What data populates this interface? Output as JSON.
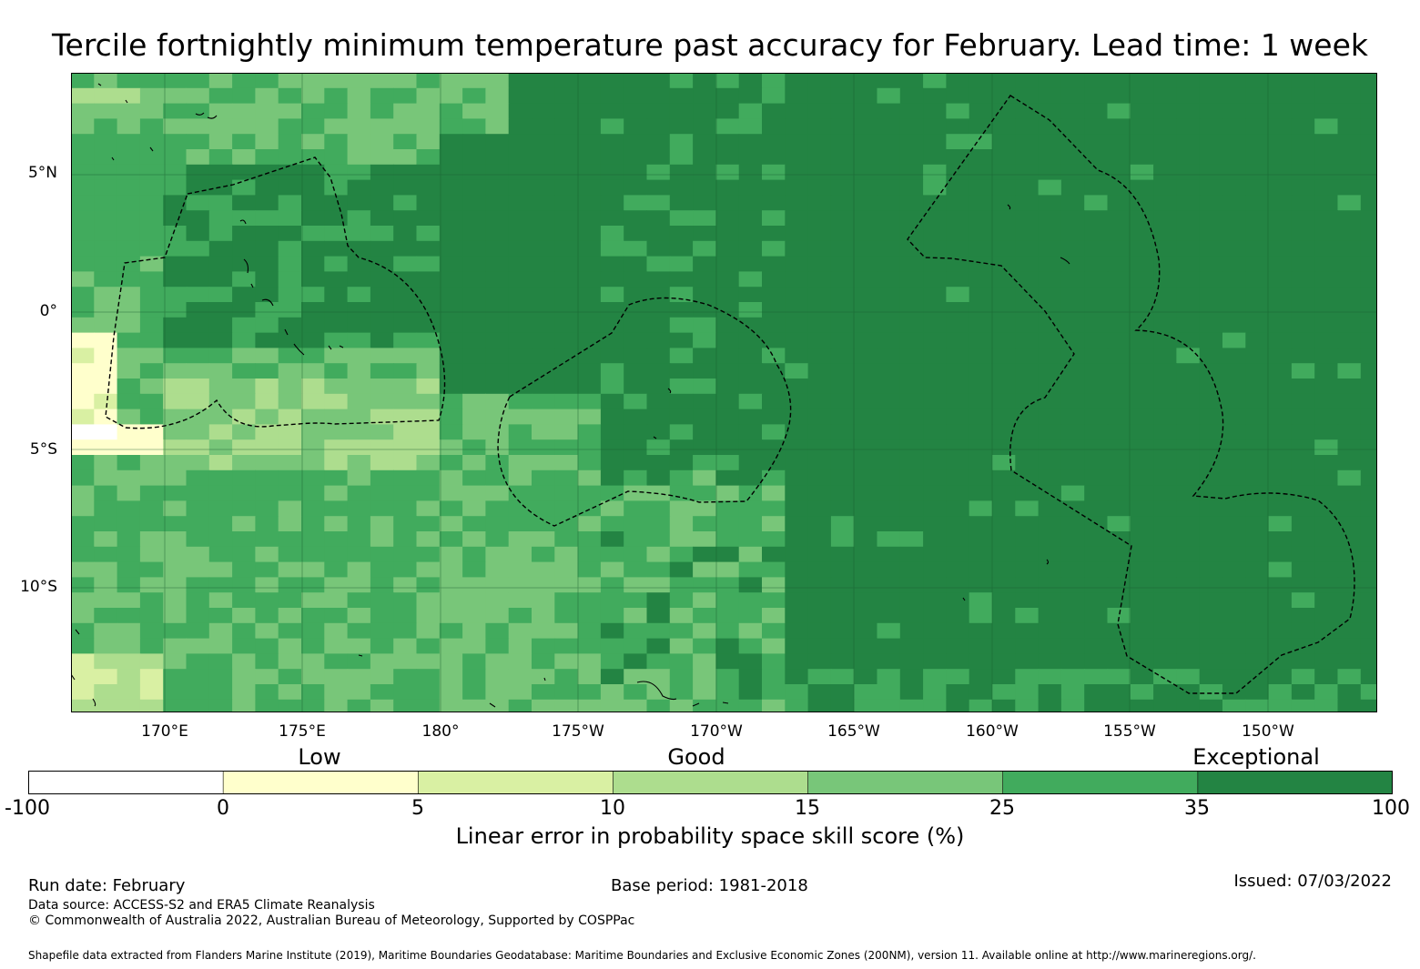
{
  "title": "Tercile fortnightly minimum temperature past accuracy for February. Lead time: 1 week",
  "map": {
    "lat_labels": [
      "5°N",
      "0°",
      "5°S",
      "10°S"
    ],
    "lon_labels": [
      "170°E",
      "175°E",
      "180°",
      "175°W",
      "170°W",
      "165°W",
      "160°W",
      "155°W",
      "150°W"
    ],
    "grid_columns": [
      "#7cc67a",
      "#7cc67a",
      "#7cc67a",
      "#7cc67a",
      "#7cc67a",
      "#7cc67a",
      "#7cc67a",
      "#42a85a",
      "#42a85a",
      "#42a85a",
      "#23843f",
      "#23843f",
      "#23843f",
      "#23843f",
      "#23843f",
      "#23843f",
      "#23843f"
    ],
    "grid_rows_top": [
      "#7cc67a",
      "#42a85a",
      "#23843f",
      "#23843f",
      "#23843f",
      "#23843f",
      "#23843f",
      "#23843f",
      "#23843f",
      "#23843f",
      "#23843f",
      "#42a85a",
      "#42a85a",
      "#42a85a",
      "#42a85a",
      "#42a85a",
      "#42a85a",
      "#42a85a",
      "#42a85a",
      "#42a85a",
      "#42a85a",
      "#42a85a",
      "#42a85a",
      "#42a85a",
      "#42a85a",
      "#42a85a",
      "#42a85a",
      "#42a85a"
    ]
  },
  "colorbar": {
    "categories": [
      "Low",
      "Good",
      "Exceptional"
    ],
    "ticks": [
      "-100",
      "0",
      "5",
      "10",
      "15",
      "25",
      "35",
      "100"
    ],
    "colors": [
      "#ffffff",
      "#ffffcc",
      "#d9f0a3",
      "#addd8e",
      "#78c679",
      "#41ab5d",
      "#238443"
    ],
    "label": "Linear error in probability space skill score (%)"
  },
  "footer": {
    "run_date": "Run date: February",
    "base_period": "Base period: 1981-2018",
    "issued": "Issued: 07/03/2022",
    "data_source": "Data source: ACCESS-S2 and ERA5 Climate Reanalysis",
    "copyright": "© Commonwealth of Australia 2022, Australian Bureau of Meteorology, Supported by COSPPac",
    "shapefile": "Shapefile data extracted from Flanders Marine Institute (2019), Maritime Boundaries Geodatabase: Maritime Boundaries and Exclusive Economic Zones (200NM), version 11. Available online at http://www.marineregions.org/."
  }
}
